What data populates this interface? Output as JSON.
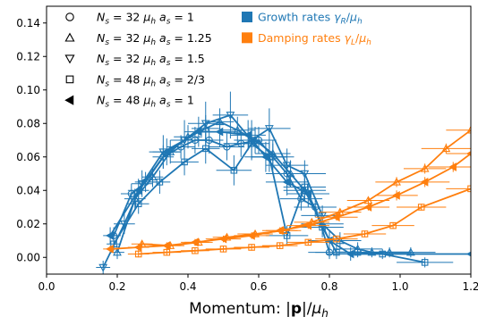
{
  "chart_data": {
    "type": "line",
    "xlabel": "Momentum: |p|/μ_h",
    "xlabel_parts": {
      "prefix": "Momentum: |",
      "bold": "p",
      "mid": "|/",
      "sym": "μ",
      "sub": "h"
    },
    "ylabel": "",
    "xlim": [
      0.0,
      1.2
    ],
    "ylim": [
      -0.01,
      0.15
    ],
    "xticks": [
      "0.0",
      "0.2",
      "0.4",
      "0.6",
      "0.8",
      "1.0",
      "1.2"
    ],
    "yticks": [
      "0.00",
      "0.02",
      "0.04",
      "0.06",
      "0.08",
      "0.10",
      "0.12",
      "0.14"
    ],
    "grid": false,
    "colors": {
      "growth": "#1f77b4",
      "damping": "#ff7f0e"
    },
    "legend_markers": [
      {
        "marker": "circle",
        "text": "N_s = 32 μ_h a_s = 1"
      },
      {
        "marker": "triangle-up",
        "text": "N_s = 32 μ_h a_s = 1.25"
      },
      {
        "marker": "triangle-down",
        "text": "N_s = 32 μ_h a_s = 1.5"
      },
      {
        "marker": "square",
        "text": "N_s = 48 μ_h a_s = 2/3"
      },
      {
        "marker": "triangle-left",
        "text": "N_s = 48 μ_h a_s = 1"
      }
    ],
    "legend_colors": [
      {
        "color": "#1f77b4",
        "text": "Growth rates γ_R/μ_h"
      },
      {
        "color": "#ff7f0e",
        "text": "Damping rates γ_L/μ_h"
      }
    ],
    "series": [
      {
        "name": "N_s = 32 μ_h a_s = 1",
        "kind": "growth",
        "marker": "circle",
        "x": [
          0.19,
          0.24,
          0.28,
          0.33,
          0.38,
          0.42,
          0.46,
          0.51,
          0.55,
          0.6,
          0.64,
          0.68,
          0.72,
          0.76,
          0.8
        ],
        "y": [
          0.013,
          0.038,
          0.045,
          0.06,
          0.066,
          0.07,
          0.07,
          0.066,
          0.068,
          0.07,
          0.06,
          0.05,
          0.035,
          0.03,
          0.003
        ],
        "xerr": [
          0.02,
          0.03,
          0.03,
          0.03,
          0.04,
          0.04,
          0.04,
          0.05,
          0.05,
          0.05,
          0.06,
          0.06,
          0.06,
          0.06,
          0.06
        ],
        "yerr": [
          0.005,
          0.006,
          0.006,
          0.007,
          0.007,
          0.008,
          0.008,
          0.008,
          0.008,
          0.008,
          0.008,
          0.008,
          0.007,
          0.006,
          0.004
        ]
      },
      {
        "name": "N_s = 32 μ_h a_s = 1.25",
        "kind": "growth",
        "marker": "triangle-up",
        "x": [
          0.2,
          0.25,
          0.3,
          0.35,
          0.4,
          0.45,
          0.49,
          0.54,
          0.59,
          0.64,
          0.69,
          0.73,
          0.78,
          0.83,
          0.88,
          0.92,
          0.97,
          1.03
        ],
        "y": [
          0.003,
          0.035,
          0.048,
          0.063,
          0.072,
          0.077,
          0.081,
          0.076,
          0.07,
          0.062,
          0.05,
          0.04,
          0.02,
          0.01,
          0.005,
          0.003,
          0.003,
          0.003
        ],
        "xerr": [
          0.02,
          0.03,
          0.03,
          0.03,
          0.04,
          0.04,
          0.04,
          0.05,
          0.05,
          0.05,
          0.06,
          0.06,
          0.06,
          0.06,
          0.07,
          0.07,
          0.07,
          0.07
        ],
        "yerr": [
          0.004,
          0.006,
          0.006,
          0.007,
          0.007,
          0.008,
          0.008,
          0.008,
          0.008,
          0.008,
          0.008,
          0.007,
          0.006,
          0.005,
          0.004,
          0.003,
          0.003,
          0.003
        ]
      },
      {
        "name": "N_s = 32 μ_h a_s = 1.5",
        "kind": "growth",
        "marker": "triangle-down",
        "x": [
          0.16,
          0.22,
          0.27,
          0.33,
          0.39,
          0.45,
          0.52,
          0.58,
          0.63,
          0.68,
          0.73,
          0.78
        ],
        "y": [
          -0.006,
          0.02,
          0.044,
          0.063,
          0.07,
          0.08,
          0.085,
          0.07,
          0.077,
          0.055,
          0.05,
          0.025
        ],
        "xerr": [
          0.02,
          0.03,
          0.03,
          0.04,
          0.04,
          0.05,
          0.05,
          0.05,
          0.06,
          0.06,
          0.06,
          0.06
        ],
        "yerr": [
          0.004,
          0.006,
          0.008,
          0.01,
          0.012,
          0.013,
          0.014,
          0.012,
          0.012,
          0.01,
          0.008,
          0.006
        ]
      },
      {
        "name": "N_s = 48 μ_h a_s = 2/3",
        "kind": "growth",
        "marker": "square",
        "x": [
          0.19,
          0.26,
          0.32,
          0.39,
          0.45,
          0.53,
          0.58,
          0.63,
          0.68,
          0.73,
          0.78,
          0.82,
          0.88,
          0.95,
          1.07
        ],
        "y": [
          0.008,
          0.032,
          0.045,
          0.057,
          0.065,
          0.052,
          0.068,
          0.06,
          0.013,
          0.042,
          0.018,
          0.003,
          0.003,
          0.002,
          -0.003
        ],
        "xerr": [
          0.02,
          0.03,
          0.03,
          0.04,
          0.04,
          0.05,
          0.05,
          0.05,
          0.06,
          0.06,
          0.06,
          0.06,
          0.07,
          0.07,
          0.08
        ],
        "yerr": [
          0.004,
          0.006,
          0.007,
          0.008,
          0.009,
          0.009,
          0.009,
          0.009,
          0.006,
          0.008,
          0.006,
          0.004,
          0.003,
          0.003,
          0.003
        ]
      },
      {
        "name": "N_s = 48 μ_h a_s = 1",
        "kind": "growth",
        "marker": "triangle-left",
        "x": [
          0.18,
          0.26,
          0.34,
          0.43,
          0.49,
          0.57,
          0.62,
          0.68,
          0.74,
          0.8,
          0.86,
          1.2
        ],
        "y": [
          0.013,
          0.04,
          0.063,
          0.075,
          0.075,
          0.073,
          0.06,
          0.045,
          0.038,
          0.01,
          0.002,
          0.002
        ],
        "xerr": [
          0.02,
          0.03,
          0.04,
          0.04,
          0.05,
          0.05,
          0.06,
          0.06,
          0.06,
          0.06,
          0.07,
          0.08
        ],
        "yerr": [
          0.005,
          0.007,
          0.008,
          0.009,
          0.009,
          0.009,
          0.009,
          0.008,
          0.008,
          0.006,
          0.004,
          0.003
        ]
      },
      {
        "name": "damping N_s = 32 μ_h a_s = 1.25",
        "kind": "damping",
        "marker": "triangle-up",
        "x": [
          0.27,
          0.35,
          0.43,
          0.51,
          0.59,
          0.67,
          0.75,
          0.83,
          0.91,
          0.99,
          1.07,
          1.13,
          1.2
        ],
        "y": [
          0.008,
          0.007,
          0.009,
          0.012,
          0.014,
          0.016,
          0.021,
          0.027,
          0.034,
          0.045,
          0.053,
          0.065,
          0.076
        ],
        "xerr": [
          0.03,
          0.04,
          0.04,
          0.04,
          0.05,
          0.05,
          0.05,
          0.06,
          0.06,
          0.06,
          0.06,
          0.07,
          0.07
        ],
        "yerr": [
          0.002,
          0.002,
          0.002,
          0.002,
          0.002,
          0.002,
          0.002,
          0.002,
          0.002,
          0.003,
          0.003,
          0.003,
          0.003
        ]
      },
      {
        "name": "damping N_s = 48 μ_h a_s = 1",
        "kind": "damping",
        "marker": "triangle-left",
        "x": [
          0.18,
          0.26,
          0.34,
          0.42,
          0.5,
          0.58,
          0.66,
          0.74,
          0.82,
          0.91,
          0.99,
          1.07,
          1.15,
          1.2
        ],
        "y": [
          0.005,
          0.006,
          0.007,
          0.009,
          0.011,
          0.013,
          0.016,
          0.019,
          0.024,
          0.03,
          0.037,
          0.045,
          0.054,
          0.062
        ],
        "xerr": [
          0.02,
          0.03,
          0.04,
          0.04,
          0.05,
          0.05,
          0.05,
          0.06,
          0.06,
          0.06,
          0.06,
          0.07,
          0.07,
          0.07
        ],
        "yerr": [
          0.002,
          0.002,
          0.002,
          0.002,
          0.002,
          0.002,
          0.002,
          0.002,
          0.002,
          0.002,
          0.003,
          0.003,
          0.003,
          0.003
        ]
      },
      {
        "name": "damping N_s = 48 μ_h a_s = 2/3",
        "kind": "damping",
        "marker": "square",
        "x": [
          0.26,
          0.34,
          0.42,
          0.5,
          0.58,
          0.66,
          0.74,
          0.82,
          0.9,
          0.98,
          1.06,
          1.2
        ],
        "y": [
          0.002,
          0.003,
          0.004,
          0.005,
          0.006,
          0.007,
          0.009,
          0.011,
          0.014,
          0.019,
          0.03,
          0.041
        ],
        "xerr": [
          0.03,
          0.04,
          0.04,
          0.05,
          0.05,
          0.05,
          0.06,
          0.06,
          0.06,
          0.06,
          0.07,
          0.07
        ],
        "yerr": [
          0.002,
          0.002,
          0.002,
          0.002,
          0.002,
          0.002,
          0.002,
          0.002,
          0.002,
          0.002,
          0.002,
          0.003
        ]
      }
    ]
  }
}
